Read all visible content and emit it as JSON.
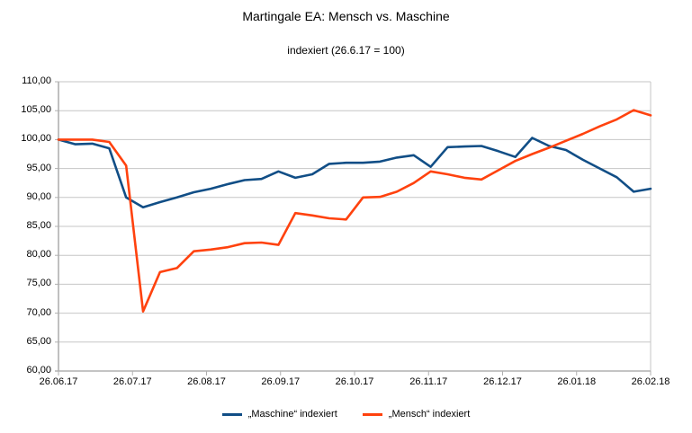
{
  "chart_data": {
    "type": "line",
    "title": "Martingale EA: Mensch vs. Maschine",
    "subtitle": "indexiert (26.6.17 = 100)",
    "x": [
      "26.06.17",
      "03.07.17",
      "10.07.17",
      "17.07.17",
      "24.07.17",
      "31.07.17",
      "07.08.17",
      "14.08.17",
      "21.08.17",
      "28.08.17",
      "04.09.17",
      "11.09.17",
      "18.09.17",
      "25.09.17",
      "02.10.17",
      "09.10.17",
      "16.10.17",
      "23.10.17",
      "30.10.17",
      "06.11.17",
      "13.11.17",
      "20.11.17",
      "27.11.17",
      "04.12.17",
      "11.12.17",
      "18.12.17",
      "25.12.17",
      "01.01.18",
      "08.01.18",
      "15.01.18",
      "22.01.18",
      "29.01.18",
      "05.02.18",
      "12.02.18",
      "19.02.18",
      "26.02.18"
    ],
    "x_tick_labels": [
      "26.06.17",
      "26.07.17",
      "26.08.17",
      "26.09.17",
      "26.10.17",
      "26.11.17",
      "26.12.17",
      "26.01.18",
      "26.02.18"
    ],
    "y_tick_labels": [
      "110,00",
      "105,00",
      "100,00",
      "95,00",
      "90,00",
      "85,00",
      "80,00",
      "75,00",
      "70,00",
      "65,00",
      "60,00"
    ],
    "ylim": [
      60,
      110
    ],
    "y_step": 5,
    "grid": "horizontal",
    "legend_position": "bottom",
    "series": [
      {
        "name": "„Maschine“ indexiert",
        "color": "#114E86",
        "values": [
          100.0,
          99.2,
          99.3,
          98.5,
          90.0,
          88.3,
          89.2,
          90.0,
          90.9,
          91.5,
          92.3,
          93.0,
          93.2,
          94.5,
          93.4,
          94.0,
          95.8,
          96.0,
          96.0,
          96.2,
          96.9,
          97.3,
          95.3,
          98.7,
          98.8,
          98.9,
          98.0,
          97.0,
          100.3,
          98.9,
          98.2,
          96.5,
          95.0,
          93.5,
          91.0,
          91.5
        ]
      },
      {
        "name": "„Mensch“ indexiert",
        "color": "#FF420E",
        "values": [
          100.0,
          100.0,
          100.0,
          99.6,
          95.5,
          70.3,
          77.1,
          77.8,
          80.7,
          81.0,
          81.4,
          82.1,
          82.2,
          81.8,
          87.3,
          86.9,
          86.4,
          86.2,
          90.0,
          90.1,
          91.0,
          92.5,
          94.5,
          94.0,
          93.4,
          93.1,
          94.7,
          96.3,
          97.5,
          98.6,
          99.8,
          101.0,
          102.3,
          103.5,
          105.1,
          104.2
        ]
      }
    ]
  },
  "colors": {
    "background": "#FFFFFF",
    "grid": "#C6C6C6",
    "axis": "#B0B0B0",
    "text": "#000000"
  }
}
